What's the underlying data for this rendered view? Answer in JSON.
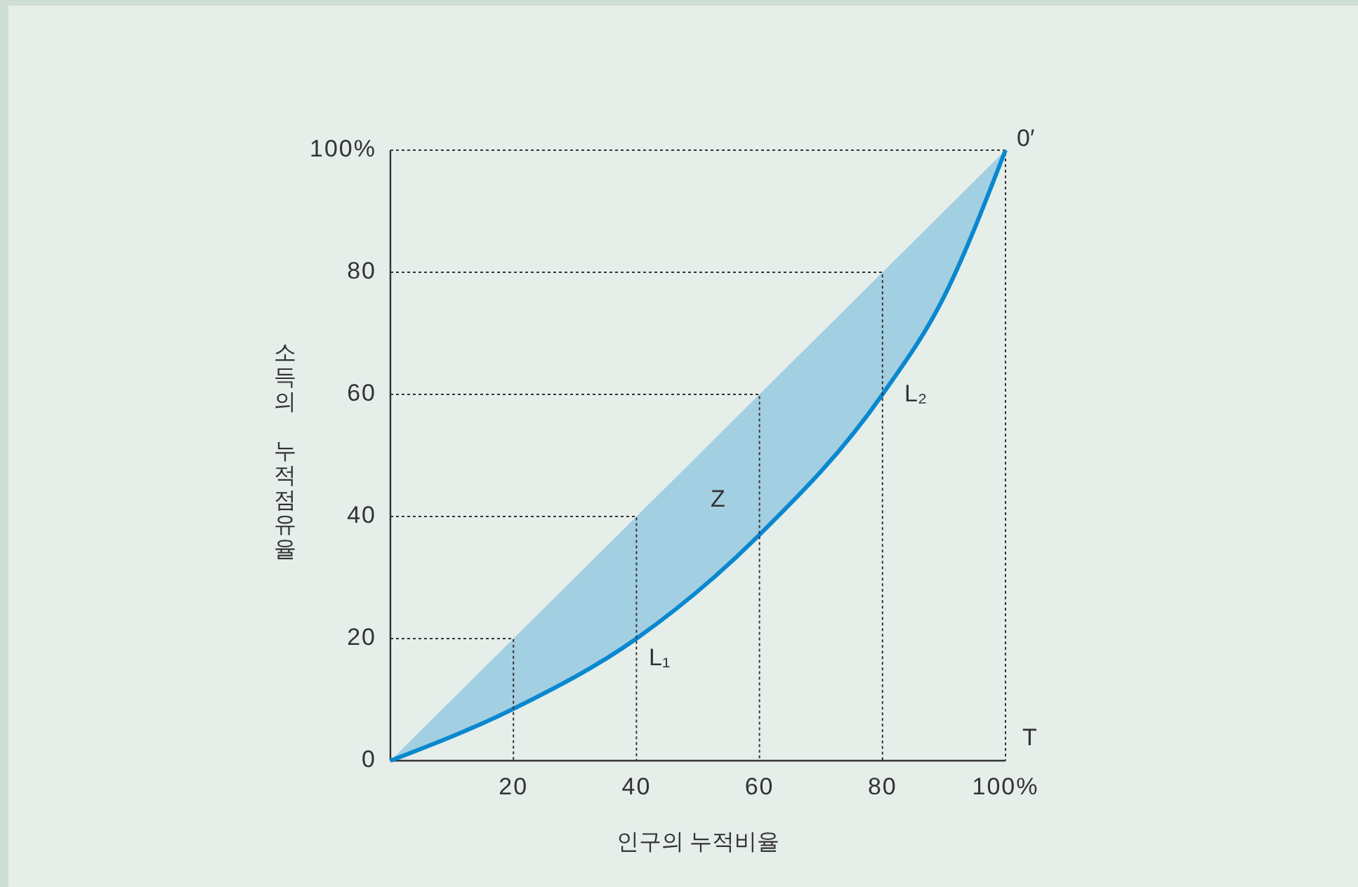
{
  "chart_data": {
    "type": "line",
    "xlabel": "인구의 누적비율",
    "ylabel": "소득의 누적점유율",
    "x": [
      0,
      20,
      40,
      60,
      80,
      90,
      100
    ],
    "series": [
      {
        "color": "#0a88cf",
        "values": [
          0,
          8.5,
          20,
          37,
          60,
          76,
          100
        ],
        "lower": [
          0,
          8.5,
          20,
          37,
          60,
          76,
          100
        ],
        "upper": [
          0,
          20,
          40,
          60,
          80,
          90,
          100
        ]
      },
      {
        "color": "#333333",
        "line_style": "dotted",
        "x": [
          0,
          20,
          20
        ],
        "values": [
          20,
          20,
          0
        ]
      },
      {
        "color": "#333333",
        "line_style": "dotted",
        "x": [
          0,
          40,
          40
        ],
        "values": [
          40,
          40,
          0
        ]
      },
      {
        "color": "#333333",
        "line_style": "dotted",
        "x": [
          0,
          60,
          60
        ],
        "values": [
          60,
          60,
          0
        ]
      },
      {
        "color": "#333333",
        "line_style": "dotted",
        "x": [
          0,
          80,
          80
        ],
        "values": [
          80,
          80,
          0
        ]
      }
    ],
    "xlim": [
      0,
      100
    ],
    "ylim": [
      0,
      100
    ],
    "xticks": [
      20,
      40,
      60,
      80,
      {
        "value": 100,
        "label": "100%"
      }
    ],
    "yticks": [
      0,
      20,
      40,
      60,
      80,
      {
        "value": 100,
        "label": "100%"
      }
    ],
    "annotations": [
      "Z",
      "L₁",
      "L₂",
      "0′",
      "T"
    ]
  }
}
